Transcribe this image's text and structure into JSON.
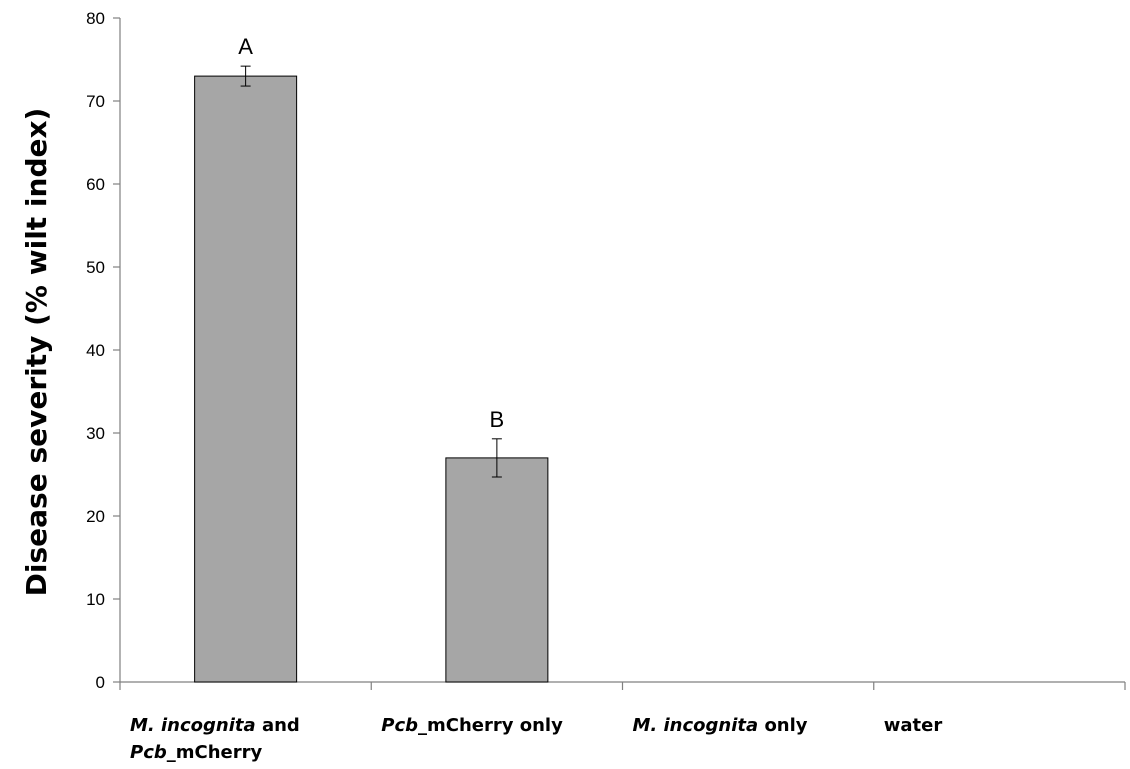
{
  "chart_data": {
    "type": "bar",
    "ylabel": "Disease severity (% wilt index)",
    "xlabel": "",
    "ylim": [
      0,
      80
    ],
    "yticks": [
      0,
      10,
      20,
      30,
      40,
      50,
      60,
      70,
      80
    ],
    "grid": false,
    "legend": "none",
    "bar_color": "#a6a6a6",
    "categories": [
      {
        "lines": [
          [
            {
              "text": "M. incognita",
              "italic": true
            },
            {
              "text": " and",
              "italic": false
            }
          ],
          [
            {
              "text": "Pcb",
              "italic": true
            },
            {
              "text": "_mCherry",
              "italic": false
            }
          ]
        ]
      },
      {
        "lines": [
          [
            {
              "text": "Pcb",
              "italic": true
            },
            {
              "text": "_mCherry only",
              "italic": false
            }
          ]
        ]
      },
      {
        "lines": [
          [
            {
              "text": "M. incognita",
              "italic": true
            },
            {
              "text": " only",
              "italic": false
            }
          ]
        ]
      },
      {
        "lines": [
          [
            {
              "text": "water",
              "italic": false
            }
          ]
        ]
      }
    ],
    "values": [
      73,
      27,
      0,
      0
    ],
    "errors": [
      1.2,
      2.3,
      null,
      null
    ],
    "significance_labels": [
      "A",
      "B",
      "",
      ""
    ]
  }
}
